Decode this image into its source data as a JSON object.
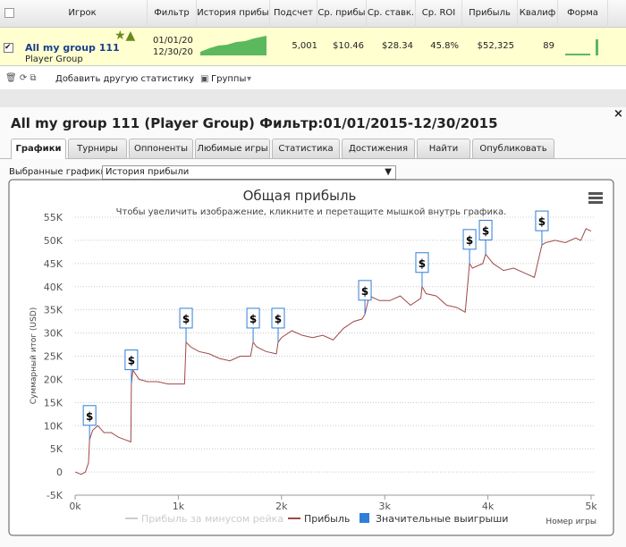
{
  "table": {
    "headers": [
      "Игрок",
      "Фильтр",
      "История прибы",
      "Подсчет",
      "Ср. прибы",
      "Ср. ставк.",
      "Ср. ROI",
      "Прибыль",
      "Квалиф",
      "Форма"
    ],
    "row": {
      "player": "All my group 111",
      "player_type": "Player Group",
      "filter": [
        "01/01/20",
        "12/30/20"
      ],
      "count": "5,001",
      "avg_profit": "$10.46",
      "avg_stake": "$28.34",
      "roi": "45.8%",
      "profit": "$52,325",
      "qualif": "89"
    }
  },
  "toolbar": {
    "add_stat": "Добавить другую статистику",
    "groups": "Группы"
  },
  "panel": {
    "title": "All my group 111 (Player Group) Фильтр:01/01/2015-12/30/2015",
    "tabs": [
      "Графики",
      "Турниры",
      "Оппоненты",
      "Любимые игры",
      "Статистика",
      "Достижения",
      "Найти",
      "Опубликовать"
    ],
    "select_label": "Выбранные графики:",
    "select_value": "История прибыли"
  },
  "chart_data": {
    "type": "line",
    "title": "Общая прибыль",
    "subtitle": "Чтобы увеличить изображение, кликните и перетащите мышкой внутрь графика.",
    "y_label": "Суммарный итог (USD)",
    "x_label": "Номер игры",
    "grid": true,
    "flag_label": "$",
    "xlim": [
      0,
      5000
    ],
    "ylim": [
      -5000,
      55000
    ],
    "xticks": [
      {
        "value": 0,
        "label": "0k"
      },
      {
        "value": 1000,
        "label": "1k"
      },
      {
        "value": 2000,
        "label": "2k"
      },
      {
        "value": 3000,
        "label": "3k"
      },
      {
        "value": 4000,
        "label": "4k"
      },
      {
        "value": 5000,
        "label": "5k"
      }
    ],
    "yticks": [
      {
        "value": -5000,
        "label": "-5K"
      },
      0,
      {
        "value": 5000,
        "label": "5K"
      },
      {
        "value": 10000,
        "label": "10K"
      },
      {
        "value": 15000,
        "label": "15K"
      },
      {
        "value": 20000,
        "label": "20K"
      },
      {
        "value": 25000,
        "label": "25K"
      },
      {
        "value": 30000,
        "label": "30K"
      },
      {
        "value": 35000,
        "label": "35K"
      },
      {
        "value": 40000,
        "label": "40K"
      },
      {
        "value": 45000,
        "label": "45K"
      },
      {
        "value": 50000,
        "label": "50K"
      },
      {
        "value": 55000,
        "label": "55K"
      }
    ],
    "series": [
      {
        "name": "Прибыль за минусом рейка",
        "color": "#cccccc",
        "visible": false
      },
      {
        "name": "Прибыль",
        "color": "#a04848",
        "type": "line",
        "x": [
          0,
          60,
          100,
          130,
          140,
          170,
          220,
          280,
          350,
          420,
          480,
          540,
          545,
          560,
          620,
          700,
          800,
          900,
          1000,
          1060,
          1075,
          1120,
          1200,
          1300,
          1400,
          1500,
          1600,
          1700,
          1725,
          1760,
          1850,
          1950,
          1967,
          2000,
          2100,
          2200,
          2300,
          2400,
          2500,
          2600,
          2700,
          2780,
          2808,
          2850,
          2950,
          3050,
          3150,
          3250,
          3350,
          3362,
          3400,
          3500,
          3600,
          3700,
          3780,
          3822,
          3850,
          3950,
          3978,
          4050,
          4150,
          4250,
          4350,
          4450,
          4523,
          4560,
          4650,
          4750,
          4850,
          4900,
          4950,
          5000
        ],
        "values": [
          0,
          -500,
          0,
          2000,
          7000,
          9000,
          10000,
          8500,
          8500,
          7500,
          7000,
          6500,
          19000,
          22000,
          20000,
          19500,
          19500,
          19000,
          19000,
          19000,
          28000,
          27000,
          26000,
          25500,
          24500,
          24000,
          25000,
          25000,
          28000,
          27000,
          26000,
          25500,
          28000,
          29000,
          30500,
          29500,
          29000,
          29500,
          28500,
          31000,
          32500,
          33000,
          34000,
          38000,
          37000,
          37000,
          38000,
          36000,
          37500,
          40000,
          38500,
          38000,
          36000,
          35500,
          34500,
          45000,
          44000,
          45000,
          47000,
          45000,
          43500,
          44000,
          43000,
          42000,
          49000,
          49500,
          50000,
          49500,
          50500,
          50000,
          52500,
          52000
        ]
      },
      {
        "name": "Значительные выигрыши",
        "color": "#2f7ed8",
        "type": "flags",
        "x": [
          140,
          545,
          1075,
          1725,
          1967,
          2808,
          3362,
          3822,
          3978,
          4523
        ],
        "values": [
          7000,
          19000,
          28000,
          28000,
          28000,
          34000,
          40000,
          45000,
          47000,
          49000
        ]
      }
    ]
  }
}
